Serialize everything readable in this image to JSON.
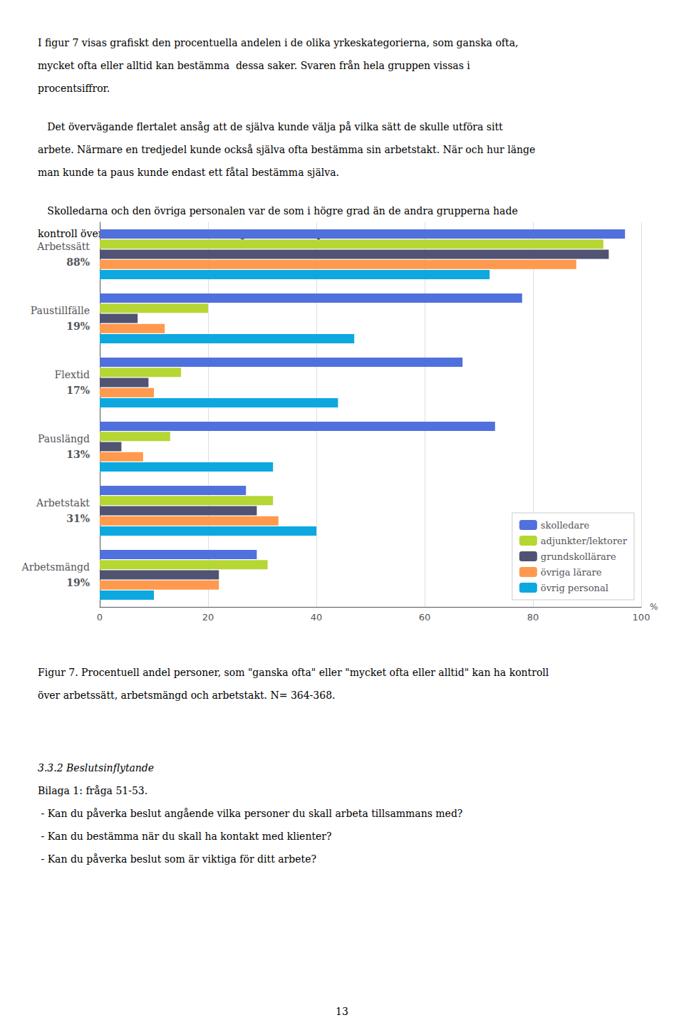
{
  "chart_data": {
    "type": "bar",
    "orientation": "horizontal",
    "categories": [
      "Arbetssätt",
      "Paustillfälle",
      "Flextid",
      "Pauslängd",
      "Arbetstakt",
      "Arbetsmängd"
    ],
    "group_labels": [
      "88%",
      "19%",
      "17%",
      "13%",
      "31%",
      "19%"
    ],
    "series": [
      {
        "name": "skolledare",
        "values": [
          97,
          78,
          67,
          73,
          27,
          29
        ]
      },
      {
        "name": "adjunkter/lektorer",
        "values": [
          93,
          20,
          15,
          13,
          32,
          31
        ]
      },
      {
        "name": "grundskollärare",
        "values": [
          94,
          7,
          9,
          4,
          29,
          22
        ]
      },
      {
        "name": "övriga lärare",
        "values": [
          88,
          12,
          10,
          8,
          33,
          22
        ]
      },
      {
        "name": "övrig personal",
        "values": [
          72,
          47,
          44,
          32,
          40,
          10
        ]
      }
    ],
    "xlabel": "%",
    "xlim": [
      0,
      100
    ],
    "xticks": [
      0,
      20,
      40,
      60,
      80,
      100
    ],
    "grid": true,
    "legend": "lower right",
    "text_above": [
      [
        "I figur 7 visas grafiskt den procentuella andelen i de olika yrkeskategorierna, som ganska ofta,",
        "mycket ofta eller alltid kan bestämma  dessa saker. Svaren från hela gruppen vissas i",
        "procentsiffror."
      ],
      [
        "   Det övervägande flertalet ansåg att de själva kunde välja på vilka sätt de skulle utföra sitt",
        "arbete. Närmare en tredjedel kunde också själva ofta bestämma sin arbetstakt. När och hur länge",
        "man kunde ta paus kunde endast ett fåtal bestämma själva."
      ],
      [
        "   Skolledarna och den övriga personalen var de som i högre grad än de andra grupperna hade",
        "kontroll över sin tid och när och hur länge de skulle ta paus."
      ]
    ],
    "caption": [
      "Figur 7. Procentuell andel personer, som \"ganska ofta\" eller \"mycket ofta eller alltid\" kan ha kontroll",
      "över arbetssätt, arbetsmängd och arbetstakt. N= 364-368."
    ],
    "section_heading": "3.3.2 Beslutsinflytande",
    "text_below": [
      "Bilaga 1: fråga 51-53.",
      " - Kan du påverka beslut angående vilka personer du skall arbeta tillsammans med?",
      " - Kan du bestämma när du skall ha kontakt med klienter?",
      " - Kan du påverka beslut som är viktiga för ditt arbete?"
    ],
    "page_number": "13"
  }
}
